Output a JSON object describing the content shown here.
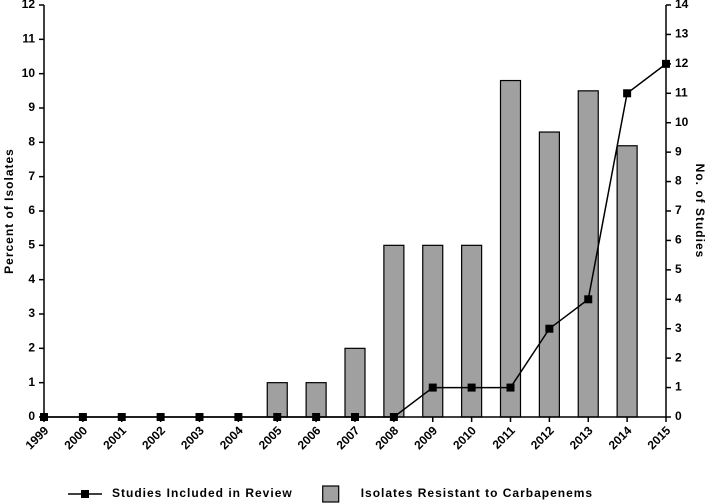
{
  "chart_data": {
    "type": "bar",
    "y_label": "Percent of Isolates",
    "y2_label": "No. of Studies",
    "categories": [
      "1999",
      "2000",
      "2001",
      "2002",
      "2003",
      "2004",
      "2005",
      "2006",
      "2007",
      "2008",
      "2009",
      "2010",
      "2011",
      "2012",
      "2013",
      "2014",
      "2015"
    ],
    "series": [
      {
        "name": "Studies Included in Review",
        "type": "line",
        "axis": "y2",
        "color": "#000000",
        "values": [
          0,
          0,
          0,
          0,
          0,
          0,
          0,
          0,
          0,
          0,
          1,
          1,
          1,
          3,
          4,
          11,
          12
        ]
      },
      {
        "name": "Isolates Resistant to Carbapenems",
        "type": "bar",
        "color": "#a0a0a0",
        "values": [
          0,
          0,
          0,
          0,
          0,
          0,
          1,
          1,
          2,
          5,
          5,
          5,
          9.8,
          8.3,
          9.5,
          7.9,
          0
        ]
      }
    ],
    "ylim": [
      0,
      12
    ],
    "yticks": [
      0,
      1,
      2,
      3,
      4,
      5,
      6,
      7,
      8,
      9,
      10,
      11,
      12
    ],
    "y2lim": [
      0,
      14
    ],
    "y2ticks": [
      0,
      1,
      2,
      3,
      4,
      5,
      6,
      7,
      8,
      9,
      10,
      11,
      12,
      13,
      14
    ]
  }
}
